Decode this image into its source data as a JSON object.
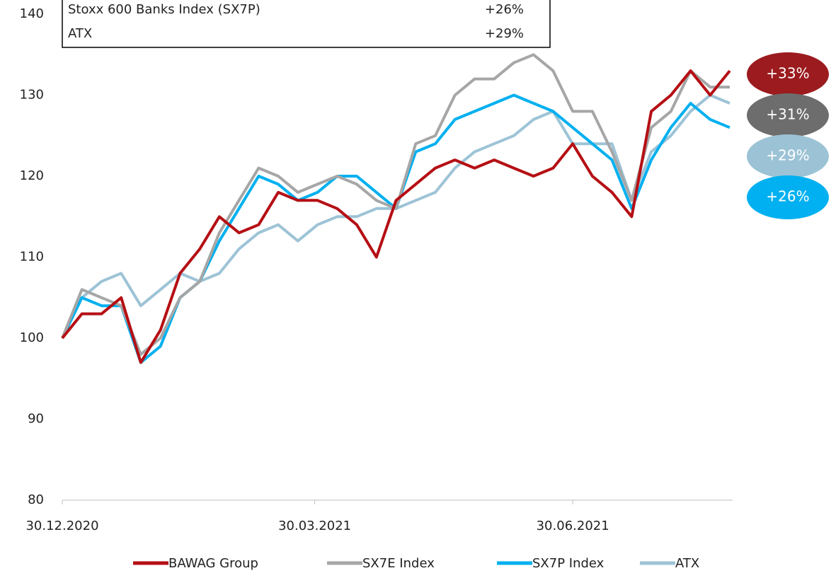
{
  "chart_data": {
    "type": "line",
    "x": [
      "30.12.2020",
      "06.01.2021",
      "13.01.2021",
      "20.01.2021",
      "27.01.2021",
      "03.02.2021",
      "10.02.2021",
      "17.02.2021",
      "24.02.2021",
      "03.03.2021",
      "10.03.2021",
      "17.03.2021",
      "24.03.2021",
      "31.03.2021",
      "07.04.2021",
      "14.04.2021",
      "21.04.2021",
      "28.04.2021",
      "05.05.2021",
      "12.05.2021",
      "19.05.2021",
      "26.05.2021",
      "02.06.2021",
      "09.06.2021",
      "16.06.2021",
      "23.06.2021",
      "30.06.2021",
      "07.07.2021",
      "14.07.2021",
      "21.07.2021",
      "28.07.2021",
      "04.08.2021",
      "11.08.2021",
      "18.08.2021",
      "25.08.2021"
    ],
    "series": [
      {
        "name": "BAWAG Group",
        "color": "#b50f14",
        "values": [
          100,
          103,
          103,
          105,
          97,
          101,
          108,
          111,
          115,
          113,
          114,
          118,
          117,
          117,
          116,
          114,
          110,
          117,
          119,
          121,
          122,
          121,
          122,
          121,
          120,
          121,
          124,
          120,
          118,
          115,
          128,
          130,
          133,
          130,
          133
        ]
      },
      {
        "name": "SX7E Index",
        "color": "#a6a6a6",
        "values": [
          100,
          106,
          105,
          104,
          98,
          100,
          105,
          107,
          113,
          117,
          121,
          120,
          118,
          119,
          120,
          119,
          117,
          116,
          124,
          125,
          130,
          132,
          132,
          134,
          135,
          133,
          128,
          128,
          123,
          117,
          126,
          128,
          133,
          131,
          131
        ]
      },
      {
        "name": "SX7P Index",
        "color": "#00b0f0",
        "values": [
          100,
          105,
          104,
          104,
          97,
          99,
          105,
          107,
          112,
          116,
          120,
          119,
          117,
          118,
          120,
          120,
          118,
          116,
          123,
          124,
          127,
          128,
          129,
          130,
          129,
          128,
          126,
          124,
          122,
          116,
          122,
          126,
          129,
          127,
          126
        ]
      },
      {
        "name": "ATX",
        "color": "#9dc3d6",
        "values": [
          100,
          105,
          107,
          108,
          104,
          106,
          108,
          107,
          108,
          111,
          113,
          114,
          112,
          114,
          115,
          115,
          116,
          116,
          117,
          118,
          121,
          123,
          124,
          125,
          127,
          128,
          124,
          124,
          124,
          117,
          123,
          125,
          128,
          130,
          129
        ]
      }
    ],
    "ylim": [
      80,
      140
    ],
    "yticks": [
      80,
      90,
      100,
      110,
      120,
      130,
      140
    ],
    "xlim": [
      "30.12.2020",
      "26.08.2021"
    ],
    "xticks": [
      "30.12.2020",
      "30.03.2021",
      "30.06.2021"
    ],
    "summary_box": [
      {
        "name": "Stoxx 600 Banks Index (SX7P)",
        "change": "+26%"
      },
      {
        "name": "ATX",
        "change": "+29%"
      }
    ],
    "end_labels": [
      {
        "label": "+33%",
        "color": "#9b1b1e"
      },
      {
        "label": "+31%",
        "color": "#6d6d6d"
      },
      {
        "label": "+29%",
        "color": "#9cc3d5"
      },
      {
        "label": "+26%",
        "color": "#00b0f0"
      }
    ]
  }
}
